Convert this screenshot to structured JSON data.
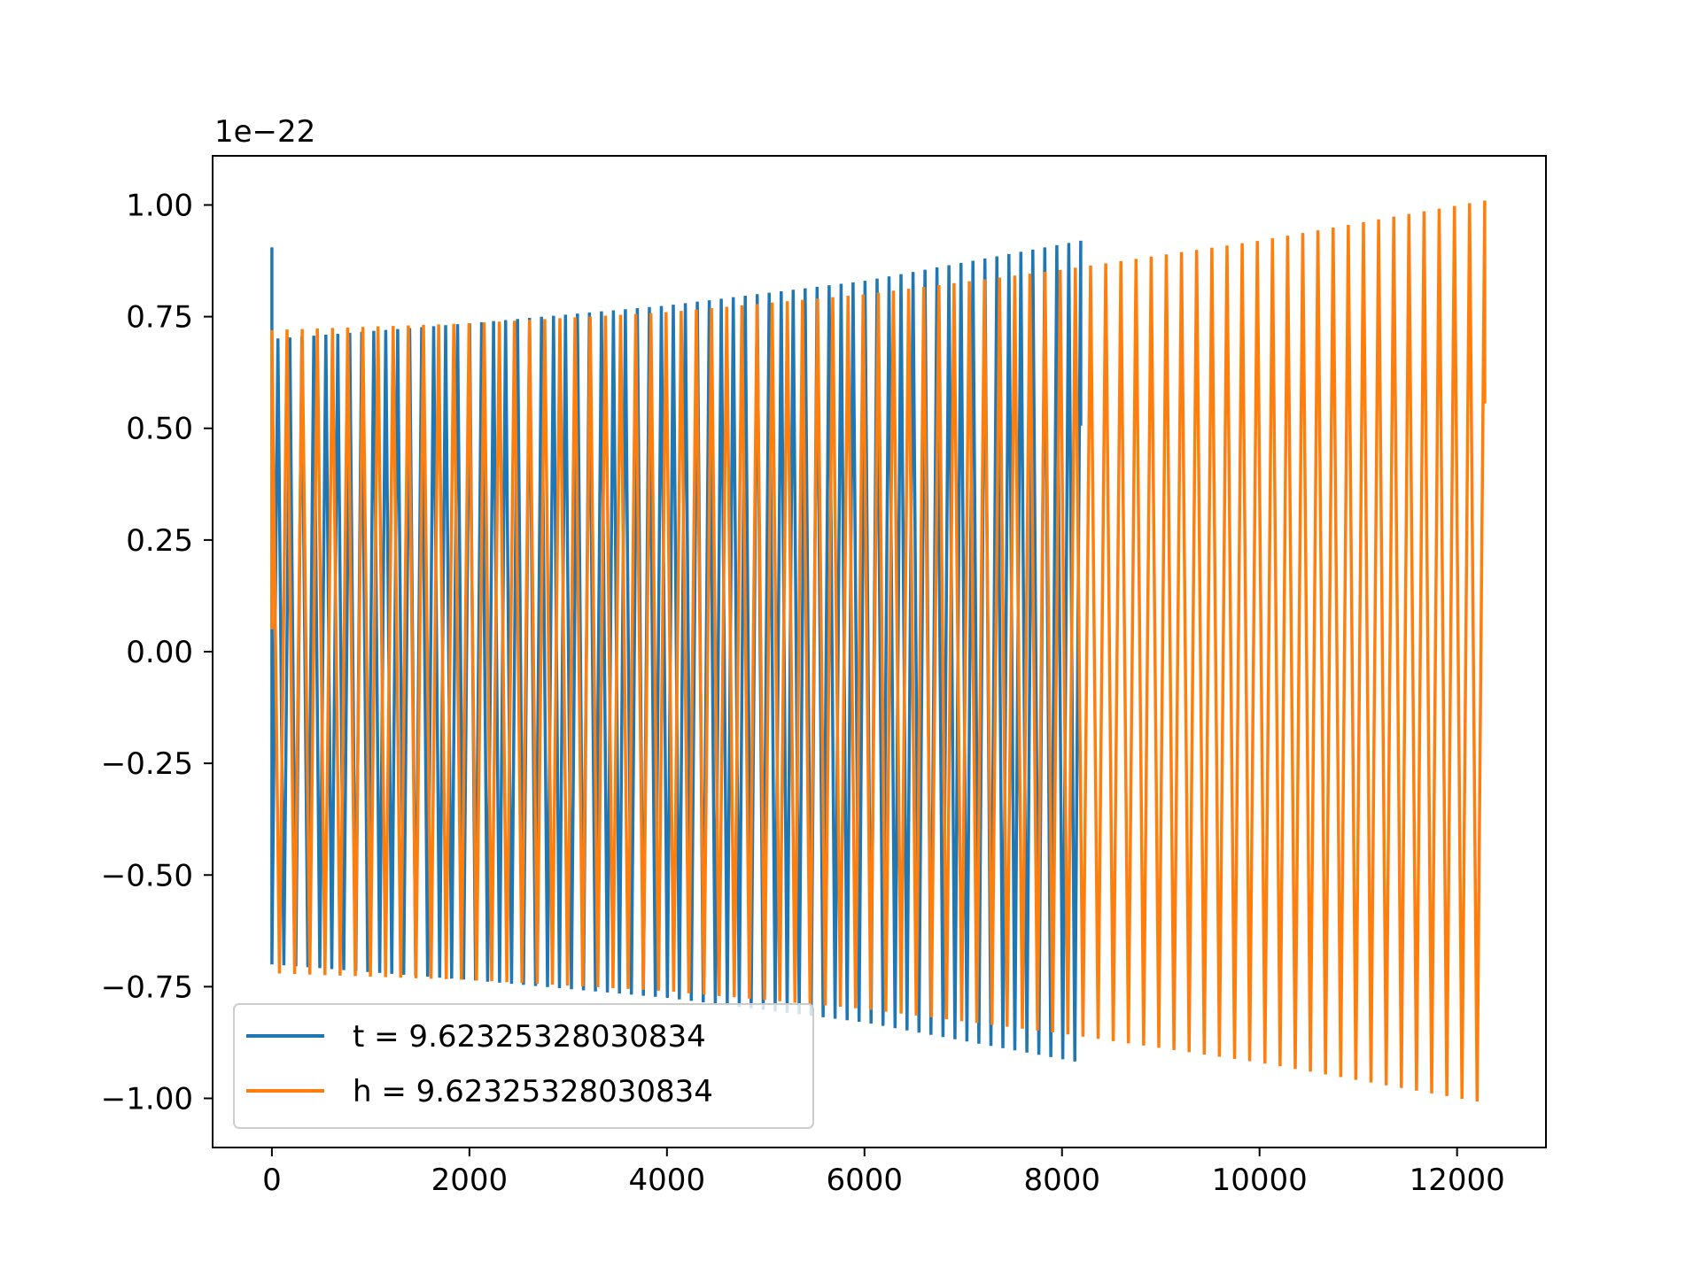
{
  "chart_data": {
    "type": "line",
    "title": "",
    "xlabel": "",
    "ylabel": "",
    "y_offset_text": "1e−22",
    "xlim": [
      -600,
      12900
    ],
    "ylim": [
      -1.11,
      1.11
    ],
    "xticks": [
      {
        "value": 0,
        "label": "0"
      },
      {
        "value": 2000,
        "label": "2000"
      },
      {
        "value": 4000,
        "label": "4000"
      },
      {
        "value": 6000,
        "label": "6000"
      },
      {
        "value": 8000,
        "label": "8000"
      },
      {
        "value": 10000,
        "label": "10000"
      },
      {
        "value": 12000,
        "label": "12000"
      }
    ],
    "yticks": [
      {
        "value": 1.0,
        "label": "1.00"
      },
      {
        "value": 0.75,
        "label": "0.75"
      },
      {
        "value": 0.5,
        "label": "0.50"
      },
      {
        "value": 0.25,
        "label": "0.25"
      },
      {
        "value": 0.0,
        "label": "0.00"
      },
      {
        "value": -0.25,
        "label": "−0.25"
      },
      {
        "value": -0.5,
        "label": "−0.50"
      },
      {
        "value": -0.75,
        "label": "−0.75"
      },
      {
        "value": -1.0,
        "label": "−1.00"
      }
    ],
    "grid": false,
    "legend_position": "lower-left",
    "series": [
      {
        "name": "t = 9.62325328030834",
        "color": "#1f77b4",
        "x_range": [
          0,
          8190
        ],
        "envelope": [
          [
            0,
            0.7
          ],
          [
            2000,
            0.735
          ],
          [
            4000,
            0.775
          ],
          [
            6000,
            0.83
          ],
          [
            8190,
            0.92
          ]
        ],
        "initial_spike": 0.905,
        "oscillation_periods": 135
      },
      {
        "name": "h = 9.62325328030834",
        "color": "#ff7f0e",
        "x_range": [
          0,
          12280
        ],
        "envelope": [
          [
            0,
            0.72
          ],
          [
            2000,
            0.735
          ],
          [
            4000,
            0.76
          ],
          [
            6000,
            0.8
          ],
          [
            8000,
            0.855
          ],
          [
            10000,
            0.92
          ],
          [
            12280,
            1.01
          ]
        ],
        "initial_spike": 0.05,
        "oscillation_periods": 160
      }
    ]
  }
}
